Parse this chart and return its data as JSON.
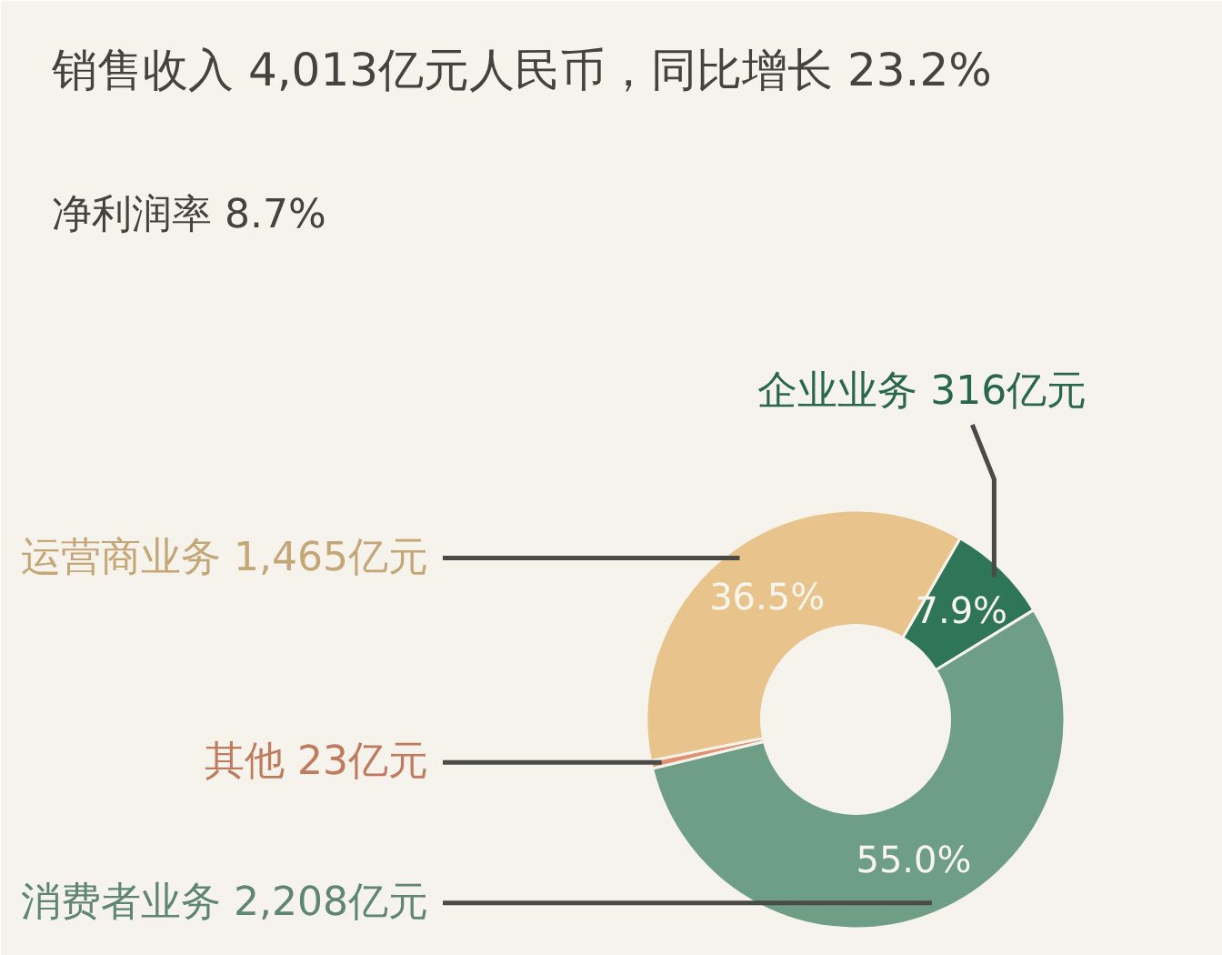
{
  "chart_data": {
    "type": "donut",
    "title": "销售收入 4,013亿元人民币，同比增长 23.2%",
    "subtitle": "净利润率 8.7%",
    "categories": [
      "企业业务 316亿元",
      "消费者业务 2,208亿元",
      "其他 23亿元",
      "运营商业务 1,465亿元"
    ],
    "values": [
      7.9,
      55.0,
      0.6,
      36.5
    ],
    "colors": [
      "#2f7658",
      "#6f9e86",
      "#e3906e",
      "#e8c48c"
    ],
    "value_labels": [
      "7.9%",
      "55.0%",
      null,
      "36.5%"
    ]
  }
}
